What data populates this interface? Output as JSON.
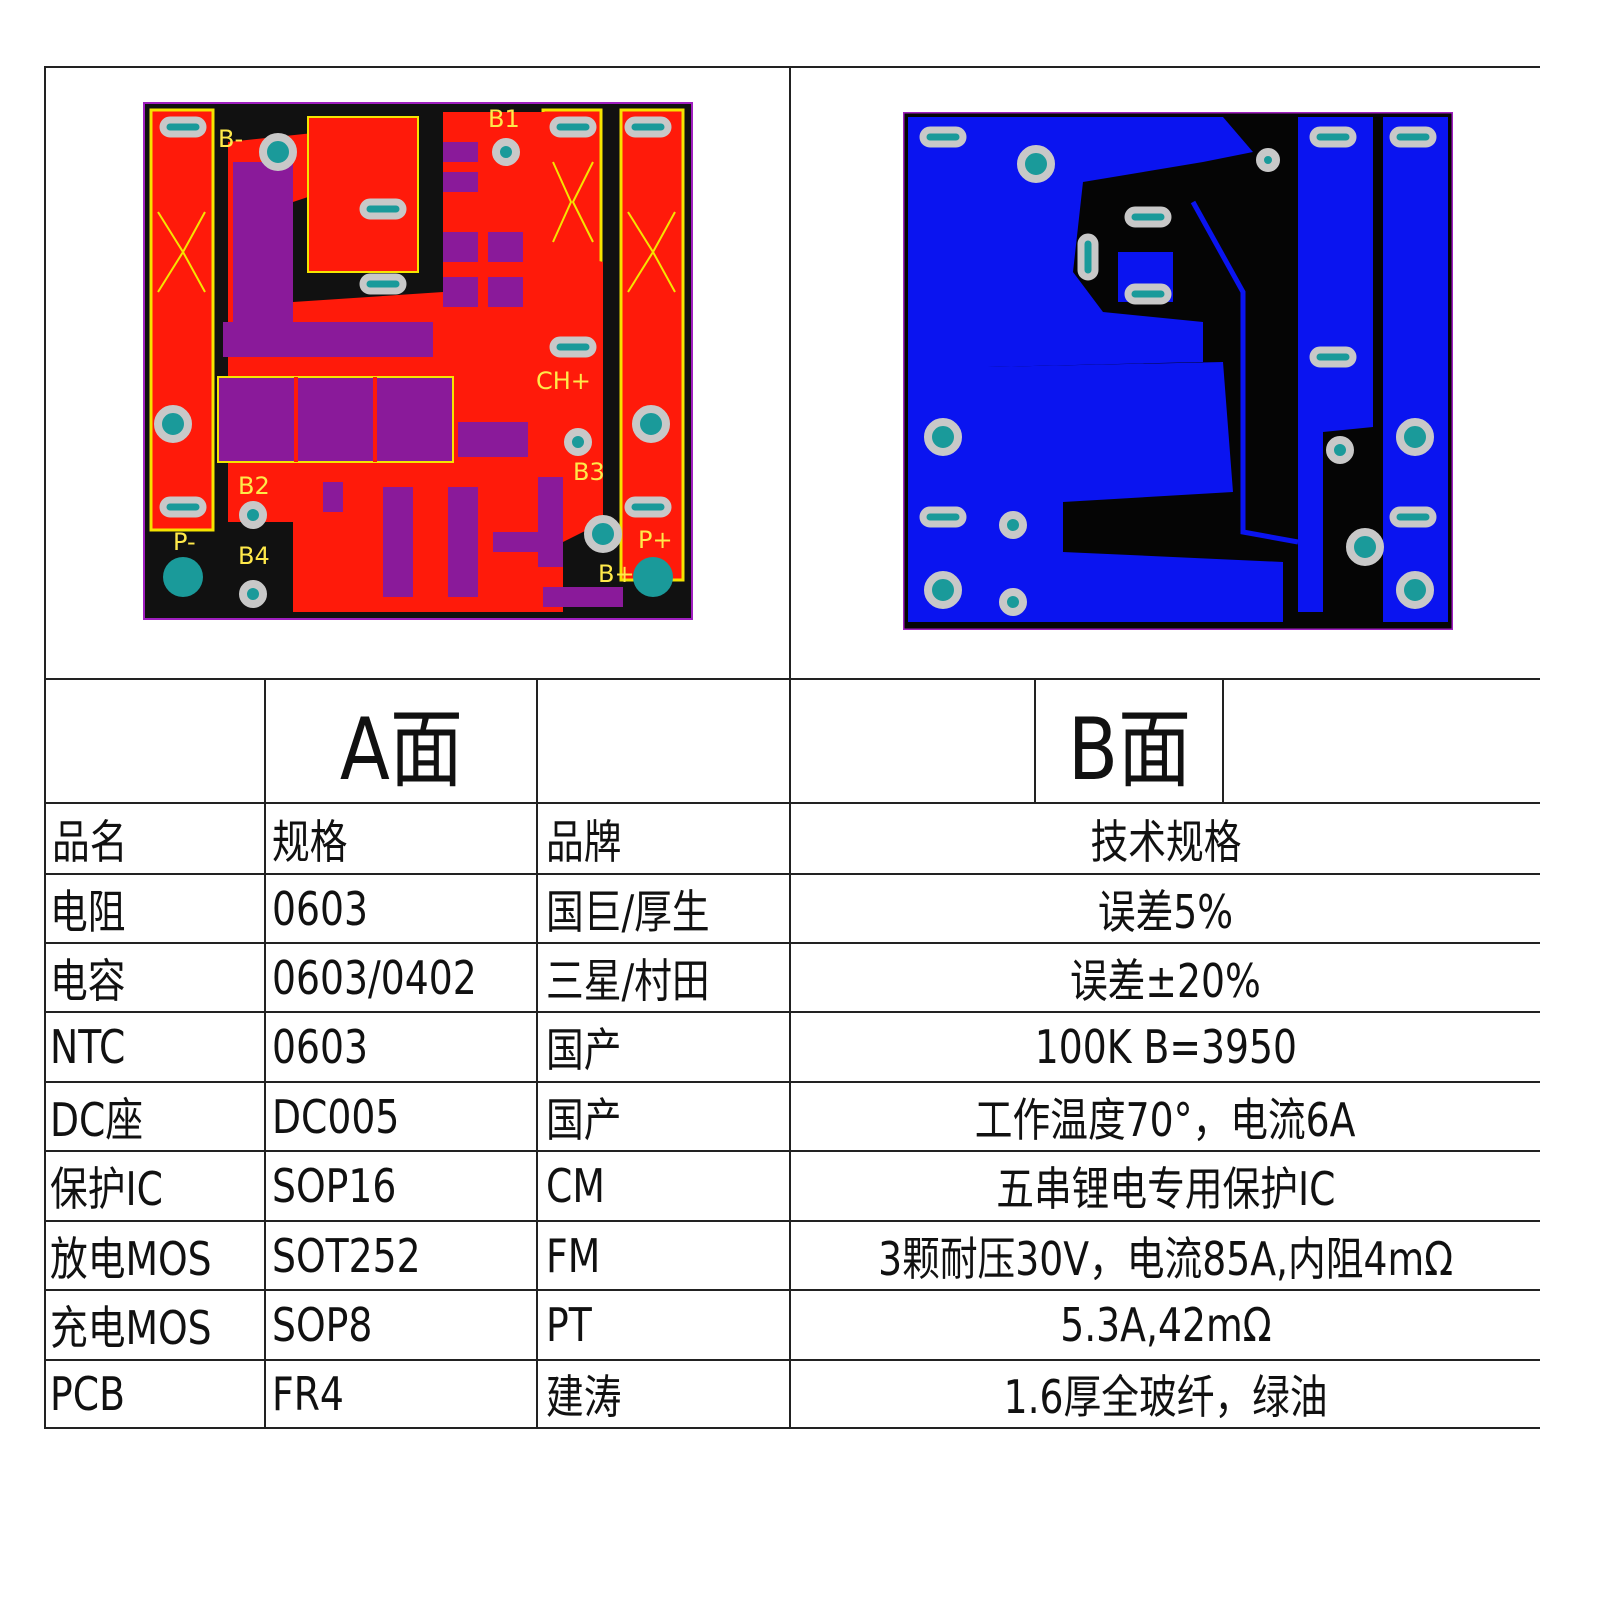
{
  "pcb_a": {
    "labels": [
      "B-",
      "B1",
      "B2",
      "B3",
      "B4",
      "P-",
      "P+",
      "B+",
      "CH+"
    ],
    "colors": {
      "copper": "#ff1a0a",
      "pad": "#8a1a9a",
      "silk": "#f5e400",
      "via": "#1a9a9a",
      "board_bg": "#111111"
    }
  },
  "pcb_b": {
    "colors": {
      "copper": "#0a14f0",
      "via": "#1a9a9a",
      "board_bg": "#050505"
    }
  },
  "header": {
    "side_a": "A面",
    "side_b": "B面"
  },
  "columns": [
    "品名",
    "规格",
    "品牌",
    "技术规格"
  ],
  "rows": [
    {
      "name": "电阻",
      "spec": "0603",
      "brand": "国巨/厚生",
      "tech": "误差5%"
    },
    {
      "name": "电容",
      "spec": "0603/0402",
      "brand": "三星/村田",
      "tech": "误差±20%"
    },
    {
      "name": "NTC",
      "spec": "0603",
      "brand": "国产",
      "tech": "100K   B=3950"
    },
    {
      "name": "DC座",
      "spec": "DC005",
      "brand": "国产",
      "tech": "工作温度70°，电流6A"
    },
    {
      "name": "保护IC",
      "spec": "SOP16",
      "brand": "CM",
      "tech": "五串锂电专用保护IC"
    },
    {
      "name": "放电MOS",
      "spec": "SOT252",
      "brand": "FM",
      "tech": "3颗耐压30V，电流85A,内阻4mΩ"
    },
    {
      "name": "充电MOS",
      "spec": "SOP8",
      "brand": "PT",
      "tech": "5.3A,42mΩ"
    },
    {
      "name": "PCB",
      "spec": "FR4",
      "brand": "建涛",
      "tech": "1.6厚全玻纤，绿油"
    }
  ]
}
